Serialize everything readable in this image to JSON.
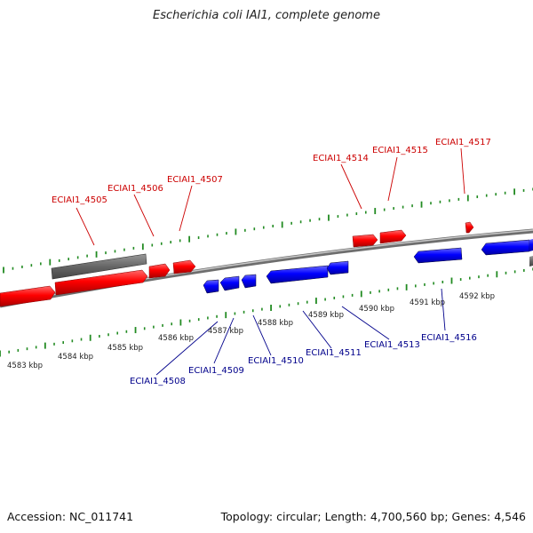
{
  "title": "Escherichia coli IAI1, complete genome",
  "footer": {
    "accession": "Accession: NC_011741",
    "summary": "Topology: circular; Length: 4,700,560 bp; Genes: 4,546"
  },
  "colors": {
    "reverse_gene": "#ff0000",
    "forward_gene": "#0000ff",
    "other_feature": "#666666",
    "backbone": "#888888",
    "ticks": "#228b22",
    "reverse_label": "#cc0000",
    "forward_label": "#00008b"
  },
  "scale_labels": [
    "4583 kbp",
    "4584 kbp",
    "4585 kbp",
    "4586 kbp",
    "4587 kbp",
    "4588 kbp",
    "4589 kbp",
    "4590 kbp",
    "4591 kbp",
    "4592 kbp"
  ],
  "reverse_genes": [
    "ECIAI1_4505",
    "ECIAI1_4506",
    "ECIAI1_4507",
    "ECIAI1_4514",
    "ECIAI1_4515",
    "ECIAI1_4517"
  ],
  "forward_genes": [
    "ECIAI1_4508",
    "ECIAI1_4509",
    "ECIAI1_4510",
    "ECIAI1_4511",
    "ECIAI1_4513",
    "ECIAI1_4516"
  ]
}
